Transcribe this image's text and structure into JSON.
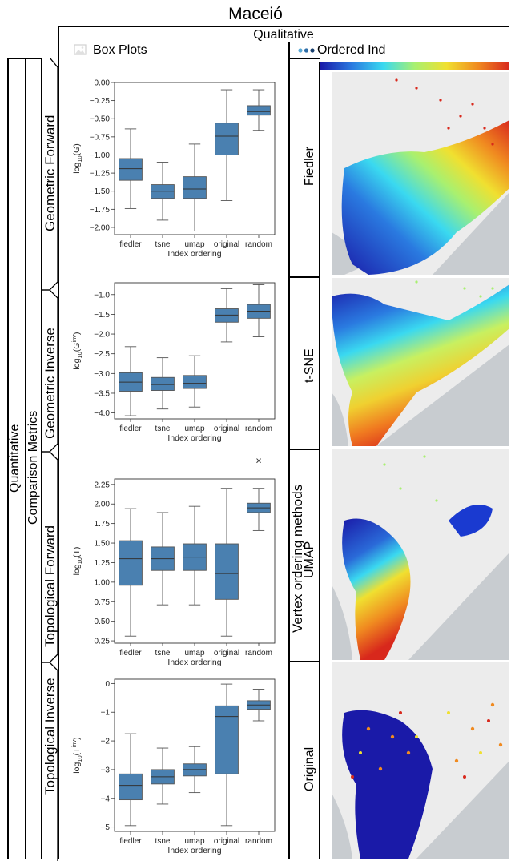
{
  "figure": {
    "title": "Maceió",
    "qualitative_label": "Qualitative",
    "boxplots_label": "Box Plots",
    "ordered_label": "Ordered Ind",
    "quantitative_label": "Quantitative",
    "comparison_label": "Comparison Metrics",
    "vertex_label": "Vertex ordering methods",
    "icons": [
      "image-icon",
      "three-dots-icon"
    ],
    "colors": {
      "box": "#4a80b0",
      "colormap": [
        "#1a1aa8",
        "#2a7ae0",
        "#3ad9f0",
        "#a8f070",
        "#f0e030",
        "#f08a20",
        "#d8281c"
      ]
    }
  },
  "rows": [
    {
      "label": "Geometric Forward"
    },
    {
      "label": "Geometric Inverse"
    },
    {
      "label": "Topological Forward"
    },
    {
      "label": "Topological Inverse"
    }
  ],
  "maps": [
    {
      "label": "Fiedler"
    },
    {
      "label": "t-SNE"
    },
    {
      "label": "UMAP"
    },
    {
      "label": "Original"
    }
  ],
  "chart_data": [
    {
      "type": "box",
      "xlabel": "Index ordering",
      "ylabel": "log10(G)",
      "categories": [
        "fiedler",
        "tsne",
        "umap",
        "original",
        "random"
      ],
      "ylim": [
        -2.1,
        0.0
      ],
      "yticks": [
        0.0,
        -0.25,
        -0.5,
        -0.75,
        -1.0,
        -1.25,
        -1.5,
        -1.75,
        -2.0
      ],
      "ytick_labels": [
        "0.00",
        "−0.25",
        "−0.50",
        "−0.75",
        "−1.00",
        "−1.25",
        "−1.50",
        "−1.75",
        "−2.00"
      ],
      "boxes": [
        {
          "min": -1.74,
          "q1": -1.35,
          "median": -1.19,
          "q3": -1.05,
          "max": -0.64
        },
        {
          "min": -1.9,
          "q1": -1.6,
          "median": -1.5,
          "q3": -1.41,
          "max": -1.1
        },
        {
          "min": -2.05,
          "q1": -1.6,
          "median": -1.47,
          "q3": -1.3,
          "max": -0.85
        },
        {
          "min": -1.63,
          "q1": -1.0,
          "median": -0.74,
          "q3": -0.56,
          "max": -0.1
        },
        {
          "min": -0.66,
          "q1": -0.45,
          "median": -0.4,
          "q3": -0.32,
          "max": -0.1
        }
      ],
      "outliers": []
    },
    {
      "type": "box",
      "xlabel": "Index ordering",
      "ylabel": "log10(G^inv)",
      "categories": [
        "fiedler",
        "tsne",
        "umap",
        "original",
        "random"
      ],
      "ylim": [
        -4.15,
        -0.7
      ],
      "yticks": [
        -1.0,
        -1.5,
        -2.0,
        -2.5,
        -3.0,
        -3.5,
        -4.0
      ],
      "ytick_labels": [
        "−1.0",
        "−1.5",
        "−2.0",
        "−2.5",
        "−3.0",
        "−3.5",
        "−4.0"
      ],
      "boxes": [
        {
          "min": -4.07,
          "q1": -3.45,
          "median": -3.22,
          "q3": -2.98,
          "max": -2.32
        },
        {
          "min": -3.9,
          "q1": -3.43,
          "median": -3.28,
          "q3": -3.1,
          "max": -2.6
        },
        {
          "min": -3.85,
          "q1": -3.38,
          "median": -3.25,
          "q3": -3.05,
          "max": -2.55
        },
        {
          "min": -2.2,
          "q1": -1.7,
          "median": -1.52,
          "q3": -1.36,
          "max": -0.85
        },
        {
          "min": -2.07,
          "q1": -1.6,
          "median": -1.42,
          "q3": -1.25,
          "max": -0.75
        }
      ],
      "outliers": []
    },
    {
      "type": "box",
      "xlabel": "Index ordering",
      "ylabel": "log10(T)",
      "categories": [
        "fiedler",
        "tsne",
        "umap",
        "original",
        "random"
      ],
      "ylim": [
        0.22,
        2.32
      ],
      "yticks": [
        2.25,
        2.0,
        1.75,
        1.5,
        1.25,
        1.0,
        0.75,
        0.5,
        0.25
      ],
      "ytick_labels": [
        "2.25",
        "2.00",
        "1.75",
        "1.50",
        "1.25",
        "1.00",
        "0.75",
        "0.50",
        "0.25"
      ],
      "boxes": [
        {
          "min": 0.31,
          "q1": 0.96,
          "median": 1.3,
          "q3": 1.53,
          "max": 1.94
        },
        {
          "min": 0.71,
          "q1": 1.15,
          "median": 1.3,
          "q3": 1.45,
          "max": 1.89
        },
        {
          "min": 0.71,
          "q1": 1.15,
          "median": 1.32,
          "q3": 1.49,
          "max": 1.97
        },
        {
          "min": 0.31,
          "q1": 0.78,
          "median": 1.11,
          "q3": 1.49,
          "max": 2.2
        },
        {
          "min": 1.66,
          "q1": 1.89,
          "median": 1.95,
          "q3": 2.01,
          "max": 2.2
        }
      ],
      "outliers": [
        {
          "category": "random",
          "value": 2.55
        }
      ]
    },
    {
      "type": "box",
      "xlabel": "Index ordering",
      "ylabel": "log10(T^inv)",
      "categories": [
        "fiedler",
        "tsne",
        "umap",
        "original",
        "random"
      ],
      "ylim": [
        -5.15,
        0.15
      ],
      "yticks": [
        0,
        -1,
        -2,
        -3,
        -4,
        -5
      ],
      "ytick_labels": [
        "0",
        "−1",
        "−2",
        "−3",
        "−4",
        "−5"
      ],
      "boxes": [
        {
          "min": -4.95,
          "q1": -4.05,
          "median": -3.55,
          "q3": -3.15,
          "max": -1.75
        },
        {
          "min": -4.2,
          "q1": -3.5,
          "median": -3.25,
          "q3": -3.0,
          "max": -2.25
        },
        {
          "min": -3.8,
          "q1": -3.22,
          "median": -3.0,
          "q3": -2.8,
          "max": -2.2
        },
        {
          "min": -4.95,
          "q1": -3.15,
          "median": -1.15,
          "q3": -0.78,
          "max": -0.02
        },
        {
          "min": -1.3,
          "q1": -0.9,
          "median": -0.75,
          "q3": -0.6,
          "max": -0.2
        }
      ],
      "outliers": []
    }
  ]
}
